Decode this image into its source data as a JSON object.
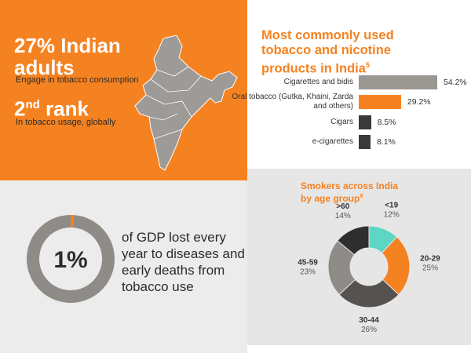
{
  "infographic": {
    "headline": "27% Indian adults",
    "headline_note": "Engage in tobacco consumption",
    "rank_number": "2",
    "rank_suffix": "nd",
    "rank_word": "rank",
    "rank_note": "In tobacco usage, globally",
    "gdp_caption": "of GDP lost every year to diseases and early deaths from tobacco use"
  },
  "chart_data": [
    {
      "type": "bar",
      "orientation": "horizontal",
      "title": "Most commonly used tobacco and nicotine products in India",
      "title_note": "5",
      "categories": [
        "Cigarettes and bidis",
        "Oral tobacco (Gutka, Khaini, Zarda and others)",
        "Cigars",
        "e-cigarettes"
      ],
      "values": [
        54.2,
        29.2,
        8.5,
        8.1
      ],
      "value_labels": [
        "54.2%",
        "29.2%",
        "8.5%",
        "8.1%"
      ],
      "colors": [
        "#9b9793",
        "#f58220",
        "#3a3a3a",
        "#3a3a3a"
      ]
    },
    {
      "type": "donut",
      "title": "Smokers across India by age group",
      "title_note": "9",
      "categories": [
        "<19",
        "20-29",
        "30-44",
        "45-59",
        ">60"
      ],
      "values": [
        12,
        25,
        26,
        23,
        14
      ],
      "value_labels": [
        "12%",
        "25%",
        "26%",
        "23%",
        "14%"
      ],
      "colors": [
        "#5ed6c4",
        "#f58220",
        "#55524f",
        "#8f8b87",
        "#2e2e2e"
      ]
    },
    {
      "type": "gauge",
      "values": [
        1
      ],
      "value_labels": [
        "1%"
      ],
      "colors": [
        "#f58220",
        "#8f8b87"
      ]
    }
  ]
}
